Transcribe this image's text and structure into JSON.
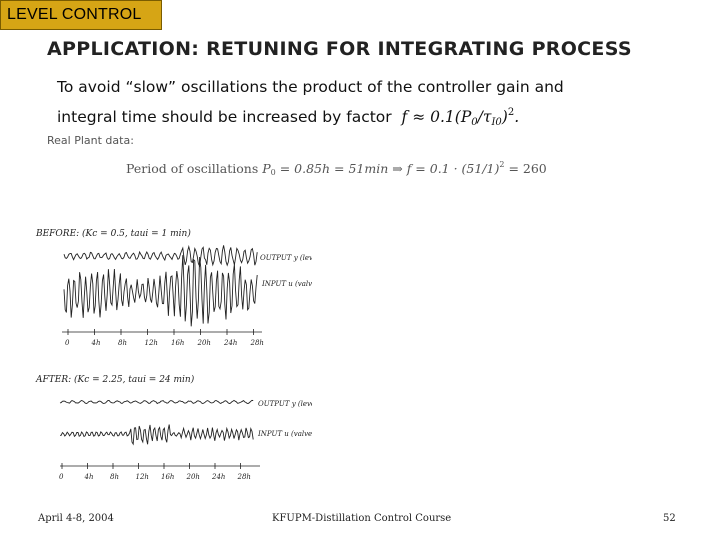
{
  "header": {
    "section_tag": "LEVEL CONTROL"
  },
  "slide": {
    "title": "APPLICATION: RETUNING FOR INTEGRATING PROCESS",
    "line1": "To avoid “slow” oscillations the product of the controller gain and",
    "line2_text": "integral time should be increased by factor",
    "formula_f": "f ≈ 0.1(P",
    "formula_f_sub0": "0",
    "formula_f_mid": "/τ",
    "formula_f_sub1": "I0",
    "formula_f_end": ")",
    "formula_f_exp": "2",
    "formula_f_period": ".",
    "plant_label": "Real Plant data:",
    "period_prefix": "Period of oscillations",
    "period_formula": "P",
    "period_sub": "0",
    "period_rest": " = 0.85h = 51min ⇒ f = 0.1 · (51/1)",
    "period_exp": "2",
    "period_end": " = 260"
  },
  "figure": {
    "before_label": "BEFORE: (Kc = 0.5, taui = 1 min)",
    "before_output": "OUTPUT y (level)",
    "before_input": "INPUT u (valve pos.)",
    "before_ticks": [
      "0",
      "4h",
      "8h",
      "12h",
      "16h",
      "20h",
      "24h",
      "28h"
    ],
    "after_label": "AFTER: (Kc = 2.25, taui = 24 min)",
    "after_output": "OUTPUT y (level)",
    "after_input": "INPUT u (valve pos.)",
    "after_ticks": [
      "0",
      "4h",
      "8h",
      "12h",
      "16h",
      "20h",
      "24h",
      "28h"
    ]
  },
  "footer": {
    "date": "April 4-8, 2004",
    "course": "KFUPM-Distillation Control Course",
    "page": "52"
  },
  "colors": {
    "tag_bg": "#d6a515",
    "title": "#222222"
  }
}
